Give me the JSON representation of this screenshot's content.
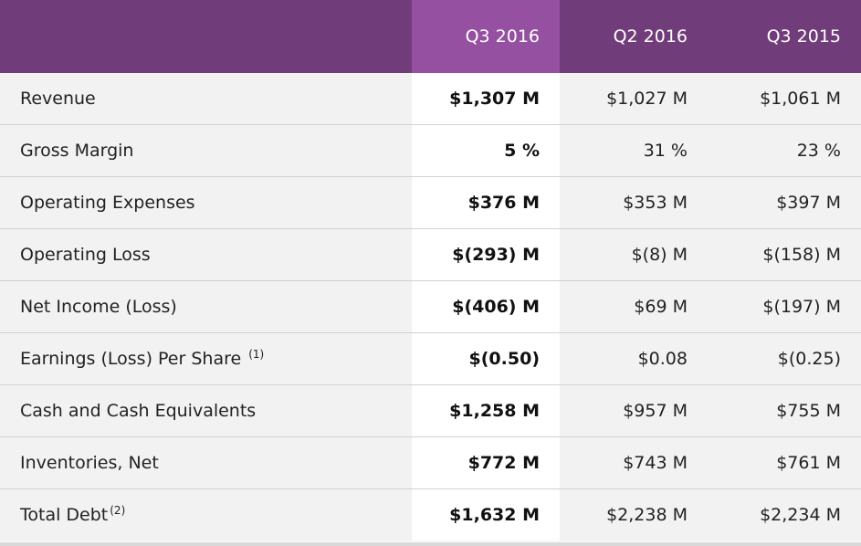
{
  "header": {
    "columns": [
      "Q3 2016",
      "Q2 2016",
      "Q3 2015"
    ]
  },
  "rows": [
    {
      "label": "Revenue",
      "sup": "",
      "values": [
        "$1,307 M",
        "$1,027 M",
        "$1,061 M"
      ]
    },
    {
      "label": "Gross Margin",
      "sup": "",
      "values": [
        "5 %",
        "31 %",
        "23 %"
      ]
    },
    {
      "label": "Operating Expenses",
      "sup": "",
      "values": [
        "$376 M",
        "$353 M",
        "$397 M"
      ]
    },
    {
      "label": "Operating Loss",
      "sup": "",
      "values": [
        "$(293) M",
        "$(8) M",
        "$(158) M"
      ]
    },
    {
      "label": "Net Income (Loss)",
      "sup": "",
      "values": [
        "$(406) M",
        "$69 M",
        "$(197) M"
      ]
    },
    {
      "label": "Earnings (Loss) Per Share ",
      "sup": "(1)",
      "values": [
        "$(0.50)",
        "$0.08",
        "$(0.25)"
      ]
    },
    {
      "label": "Cash and Cash Equivalents",
      "sup": "",
      "values": [
        "$1,258 M",
        "$957 M",
        "$755 M"
      ]
    },
    {
      "label": "Inventories, Net",
      "sup": "",
      "values": [
        "$772 M",
        "$743 M",
        "$761 M"
      ]
    },
    {
      "label": "Total Debt",
      "sup": "(2)",
      "values": [
        "$1,632 M",
        "$2,238 M",
        "$2,234 M"
      ]
    }
  ],
  "colors": {
    "header_bg": "#713c7a",
    "header_current_bg": "#9550a1",
    "row_bg": "#f2f2f2",
    "current_col_bg": "#ffffff"
  }
}
